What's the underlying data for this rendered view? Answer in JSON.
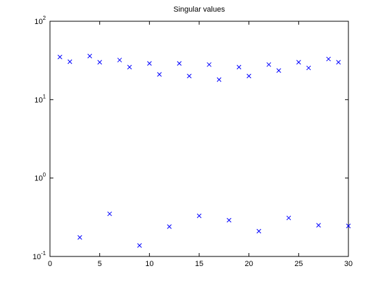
{
  "chart_data": {
    "type": "scatter",
    "title": "Singular values",
    "x": [
      1,
      2,
      3,
      4,
      5,
      6,
      7,
      8,
      9,
      10,
      11,
      12,
      13,
      14,
      15,
      16,
      17,
      18,
      19,
      20,
      21,
      22,
      23,
      24,
      25,
      26,
      27,
      28,
      29,
      30
    ],
    "series": [
      {
        "color": "#0000ff",
        "marker": "x",
        "values": [
          35,
          30.5,
          0.175,
          36,
          30,
          0.35,
          32,
          26,
          0.138,
          29,
          21,
          0.24,
          29,
          20,
          0.33,
          28,
          18,
          0.29,
          26,
          20,
          0.21,
          28,
          23.5,
          0.31,
          30,
          25.4,
          0.25,
          33,
          30,
          0.245
        ]
      }
    ],
    "xlim": [
      0,
      30
    ],
    "xticks": [
      0,
      5,
      10,
      15,
      20,
      25,
      30
    ],
    "ylim": [
      0.1,
      100
    ],
    "ylog": true,
    "yticks": [
      {
        "value": 0.1,
        "label": "10^-1"
      },
      {
        "value": 1,
        "label": "10^0"
      },
      {
        "value": 10,
        "label": "10^1"
      },
      {
        "value": 100,
        "label": "10^2"
      }
    ],
    "grid": false
  }
}
